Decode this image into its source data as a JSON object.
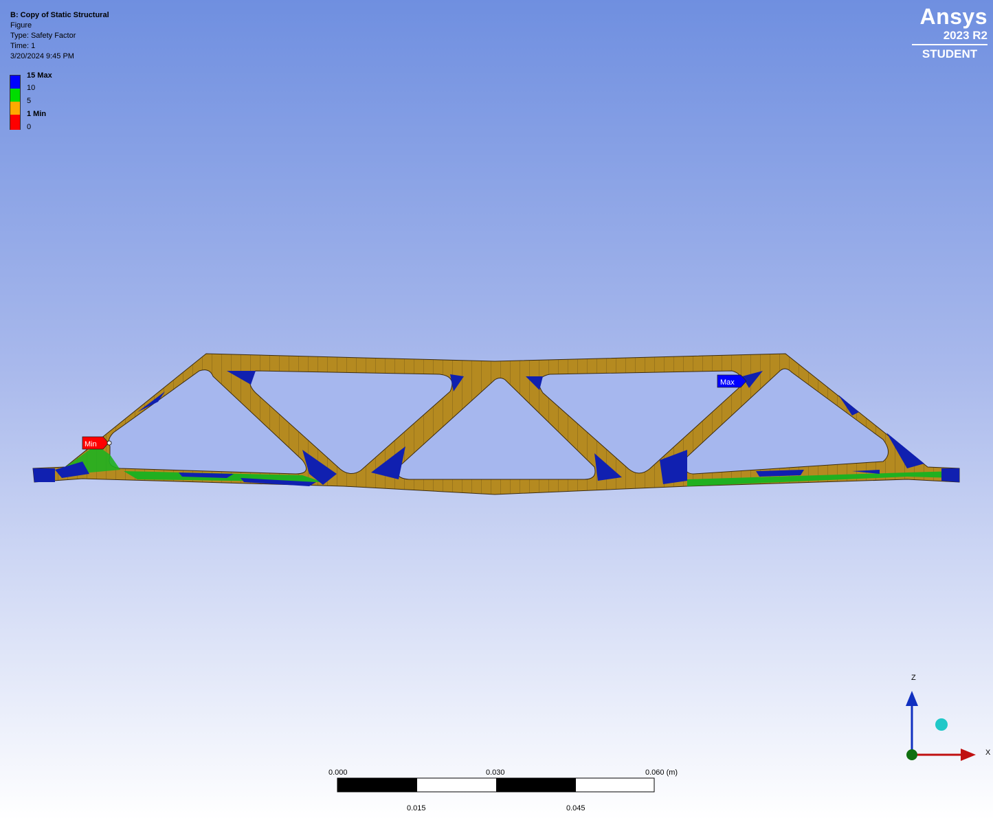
{
  "info": {
    "title": "B: Copy of Static Structural",
    "figure": "Figure",
    "type": "Type: Safety Factor",
    "time": "Time: 1",
    "timestamp": "3/20/2024 9:45 PM"
  },
  "legend": {
    "items": [
      {
        "label": "15 Max",
        "bold": true
      },
      {
        "label": "10",
        "bold": false
      },
      {
        "label": "5",
        "bold": false
      },
      {
        "label": "1 Min",
        "bold": true
      },
      {
        "label": "0",
        "bold": false
      }
    ],
    "colors": [
      "#0000ff",
      "#00dd00",
      "#ffaa00",
      "#ff0000"
    ]
  },
  "brand": {
    "name": "Ansys",
    "version": "2023 R2",
    "edition": "STUDENT"
  },
  "probes": {
    "min_label": "Min",
    "max_label": "Max",
    "min_color": "#ff0000",
    "max_color": "#0000ff"
  },
  "model_colors": {
    "member": "#b58a20",
    "low": "#1020b0",
    "mid": "#20b020",
    "edge": "#3a2a10"
  },
  "scale_bar": {
    "top_labels": [
      "0.000",
      "0.030",
      "0.060 (m)"
    ],
    "bottom_labels": [
      "0.015",
      "0.045"
    ]
  },
  "triad": {
    "z_label": "Z",
    "x_label": "X",
    "z_color": "#1030c0",
    "x_color": "#c01010",
    "ball_color": "#20c8c8"
  }
}
